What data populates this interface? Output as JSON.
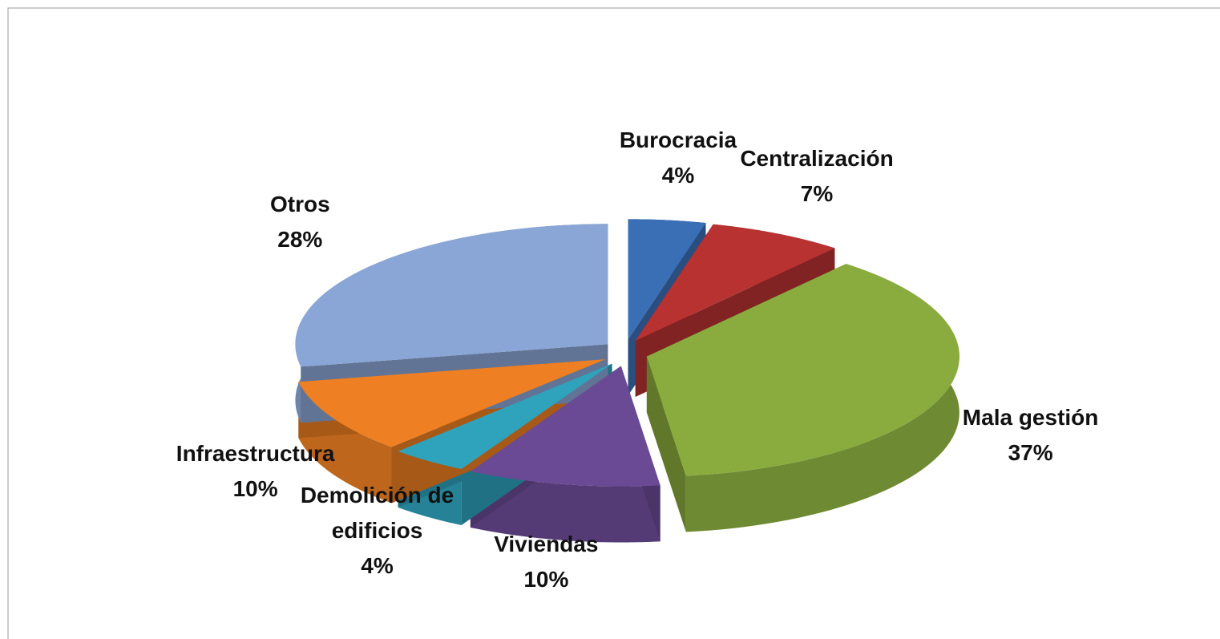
{
  "chart_data": {
    "type": "pie",
    "categories": [
      "Burocracia",
      "Centralización",
      "Mala gestión",
      "Viviendas",
      "Demolición de edificios",
      "Infraestructura",
      "Otros"
    ],
    "values": [
      4,
      7,
      37,
      10,
      4,
      10,
      28
    ],
    "value_labels": [
      "4%",
      "7%",
      "37%",
      "10%",
      "4%",
      "10%",
      "28%"
    ],
    "colors": [
      "#3a6fb5",
      "#b83232",
      "#8aac3e",
      "#6a4a94",
      "#2fa2bc",
      "#ee7f22",
      "#8aa6d6"
    ]
  }
}
